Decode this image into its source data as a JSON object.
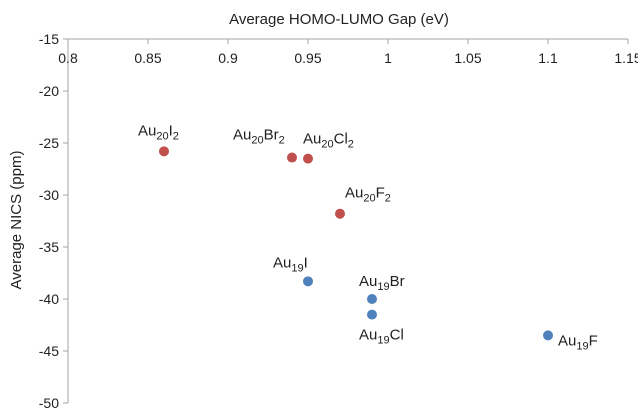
{
  "chart_data": {
    "type": "scatter",
    "title": "",
    "xlabel": "Average HOMO-LUMO Gap (eV)",
    "ylabel": "Average NICS (ppm)",
    "xlim": [
      0.8,
      1.15
    ],
    "ylim": [
      -50,
      -15
    ],
    "x_ticks": [
      "0.8",
      "0.85",
      "0.9",
      "0.95",
      "1",
      "1.05",
      "1.1",
      "1.15"
    ],
    "y_ticks": [
      "-15",
      "-20",
      "-25",
      "-30",
      "-35",
      "-40",
      "-45",
      "-50"
    ],
    "x_axis_position": "top",
    "grid": false,
    "legend": "none",
    "series": [
      {
        "color": "#C0504D",
        "points": [
          {
            "x": 0.86,
            "y": -25.8,
            "label": "Au20I2",
            "label_base": "Au",
            "label_sub1": "20",
            "label_el": "I",
            "label_sub2": "2"
          },
          {
            "x": 0.94,
            "y": -26.4,
            "label": "Au20Br2",
            "label_base": "Au",
            "label_sub1": "20",
            "label_el": "Br",
            "label_sub2": "2"
          },
          {
            "x": 0.95,
            "y": -26.5,
            "label": "Au20Cl2",
            "label_base": "Au",
            "label_sub1": "20",
            "label_el": "Cl",
            "label_sub2": "2"
          },
          {
            "x": 0.97,
            "y": -31.8,
            "label": "Au20F2",
            "label_base": "Au",
            "label_sub1": "20",
            "label_el": "F",
            "label_sub2": "2"
          }
        ]
      },
      {
        "color": "#4F81BD",
        "points": [
          {
            "x": 0.95,
            "y": -38.3,
            "label": "Au19I",
            "label_base": "Au",
            "label_sub1": "19",
            "label_el": "I",
            "label_sub2": ""
          },
          {
            "x": 0.99,
            "y": -40.0,
            "label": "Au19Br",
            "label_base": "Au",
            "label_sub1": "19",
            "label_el": "Br",
            "label_sub2": ""
          },
          {
            "x": 0.99,
            "y": -41.5,
            "label": "Au19Cl",
            "label_base": "Au",
            "label_sub1": "19",
            "label_el": "Cl",
            "label_sub2": ""
          },
          {
            "x": 1.1,
            "y": -43.5,
            "label": "Au19F",
            "label_base": "Au",
            "label_sub1": "19",
            "label_el": "F",
            "label_sub2": ""
          }
        ]
      }
    ]
  }
}
